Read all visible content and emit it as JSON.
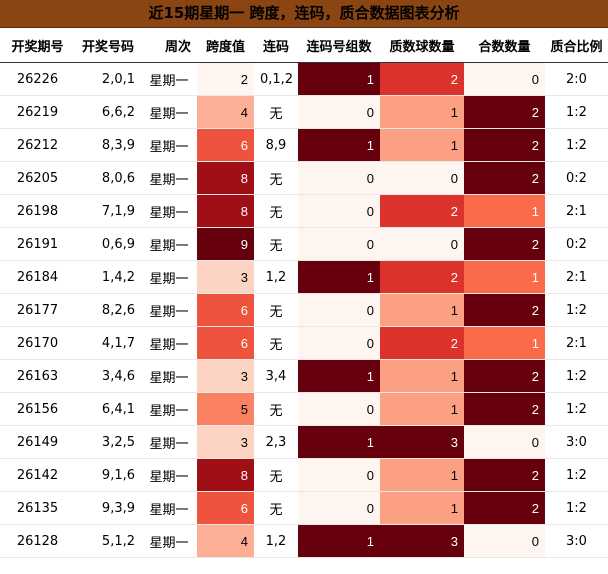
{
  "chart_data": {
    "type": "table",
    "title": "近15期星期一 跨度，连码，质合数据图表分析",
    "columns": [
      "开奖期号",
      "开奖号码",
      "周次",
      "跨度值",
      "连码",
      "连码号组数",
      "质数球数量",
      "合数数量",
      "质合比例"
    ],
    "rows": [
      {
        "issue": "26226",
        "numbers": "2,0,1",
        "weekday": "星期一",
        "span": 2,
        "consecutive": "0,1,2",
        "consec_groups": 1,
        "prime_count": 2,
        "composite_count": 0,
        "ratio": "2:0"
      },
      {
        "issue": "26219",
        "numbers": "6,6,2",
        "weekday": "星期一",
        "span": 4,
        "consecutive": "无",
        "consec_groups": 0,
        "prime_count": 1,
        "composite_count": 2,
        "ratio": "1:2"
      },
      {
        "issue": "26212",
        "numbers": "8,3,9",
        "weekday": "星期一",
        "span": 6,
        "consecutive": "8,9",
        "consec_groups": 1,
        "prime_count": 1,
        "composite_count": 2,
        "ratio": "1:2"
      },
      {
        "issue": "26205",
        "numbers": "8,0,6",
        "weekday": "星期一",
        "span": 8,
        "consecutive": "无",
        "consec_groups": 0,
        "prime_count": 0,
        "composite_count": 2,
        "ratio": "0:2"
      },
      {
        "issue": "26198",
        "numbers": "7,1,9",
        "weekday": "星期一",
        "span": 8,
        "consecutive": "无",
        "consec_groups": 0,
        "prime_count": 2,
        "composite_count": 1,
        "ratio": "2:1"
      },
      {
        "issue": "26191",
        "numbers": "0,6,9",
        "weekday": "星期一",
        "span": 9,
        "consecutive": "无",
        "consec_groups": 0,
        "prime_count": 0,
        "composite_count": 2,
        "ratio": "0:2"
      },
      {
        "issue": "26184",
        "numbers": "1,4,2",
        "weekday": "星期一",
        "span": 3,
        "consecutive": "1,2",
        "consec_groups": 1,
        "prime_count": 2,
        "composite_count": 1,
        "ratio": "2:1"
      },
      {
        "issue": "26177",
        "numbers": "8,2,6",
        "weekday": "星期一",
        "span": 6,
        "consecutive": "无",
        "consec_groups": 0,
        "prime_count": 1,
        "composite_count": 2,
        "ratio": "1:2"
      },
      {
        "issue": "26170",
        "numbers": "4,1,7",
        "weekday": "星期一",
        "span": 6,
        "consecutive": "无",
        "consec_groups": 0,
        "prime_count": 2,
        "composite_count": 1,
        "ratio": "2:1"
      },
      {
        "issue": "26163",
        "numbers": "3,4,6",
        "weekday": "星期一",
        "span": 3,
        "consecutive": "3,4",
        "consec_groups": 1,
        "prime_count": 1,
        "composite_count": 2,
        "ratio": "1:2"
      },
      {
        "issue": "26156",
        "numbers": "6,4,1",
        "weekday": "星期一",
        "span": 5,
        "consecutive": "无",
        "consec_groups": 0,
        "prime_count": 1,
        "composite_count": 2,
        "ratio": "1:2"
      },
      {
        "issue": "26149",
        "numbers": "3,2,5",
        "weekday": "星期一",
        "span": 3,
        "consecutive": "2,3",
        "consec_groups": 1,
        "prime_count": 3,
        "composite_count": 0,
        "ratio": "3:0"
      },
      {
        "issue": "26142",
        "numbers": "9,1,6",
        "weekday": "星期一",
        "span": 8,
        "consecutive": "无",
        "consec_groups": 0,
        "prime_count": 1,
        "composite_count": 2,
        "ratio": "1:2"
      },
      {
        "issue": "26135",
        "numbers": "9,3,9",
        "weekday": "星期一",
        "span": 6,
        "consecutive": "无",
        "consec_groups": 0,
        "prime_count": 1,
        "composite_count": 2,
        "ratio": "1:2"
      },
      {
        "issue": "26128",
        "numbers": "5,1,2",
        "weekday": "星期一",
        "span": 4,
        "consecutive": "1,2",
        "consec_groups": 1,
        "prime_count": 3,
        "composite_count": 0,
        "ratio": "3:0"
      }
    ],
    "heat_scales": {
      "span": {
        "min": 2,
        "max": 9
      },
      "consec_groups": {
        "min": 0,
        "max": 1
      },
      "prime_count": {
        "min": 0,
        "max": 3
      },
      "composite_count": {
        "min": 0,
        "max": 2
      }
    },
    "colormap": [
      "#fff5f0",
      "#fcbba1",
      "#fb6a4a",
      "#cb181d",
      "#67000d"
    ],
    "colors": {
      "title_bg": "#8b4513"
    }
  }
}
